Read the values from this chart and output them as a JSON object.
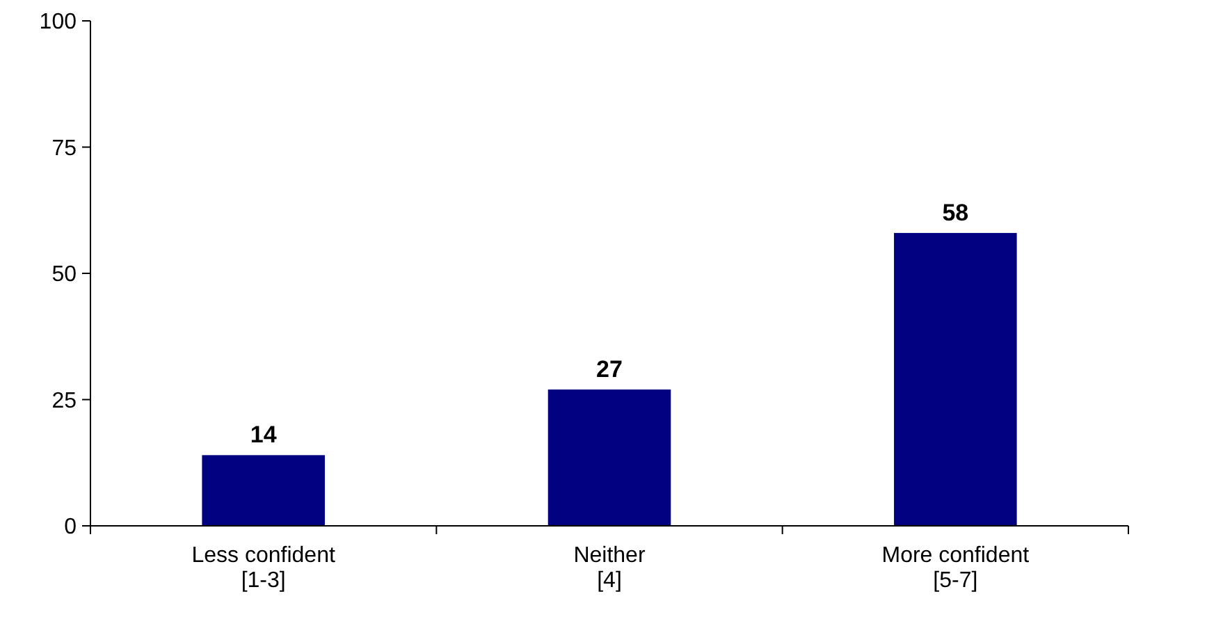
{
  "chart_data": {
    "type": "bar",
    "categories": [
      "Less confident\n[1-3]",
      "Neither\n[4]",
      "More confident\n[5-7]"
    ],
    "values": [
      14,
      27,
      58
    ],
    "color": "#000080",
    "ylim": [
      0,
      100
    ],
    "yticks": [
      0,
      25,
      50,
      75,
      100
    ],
    "grid": false,
    "data_labels": true
  }
}
